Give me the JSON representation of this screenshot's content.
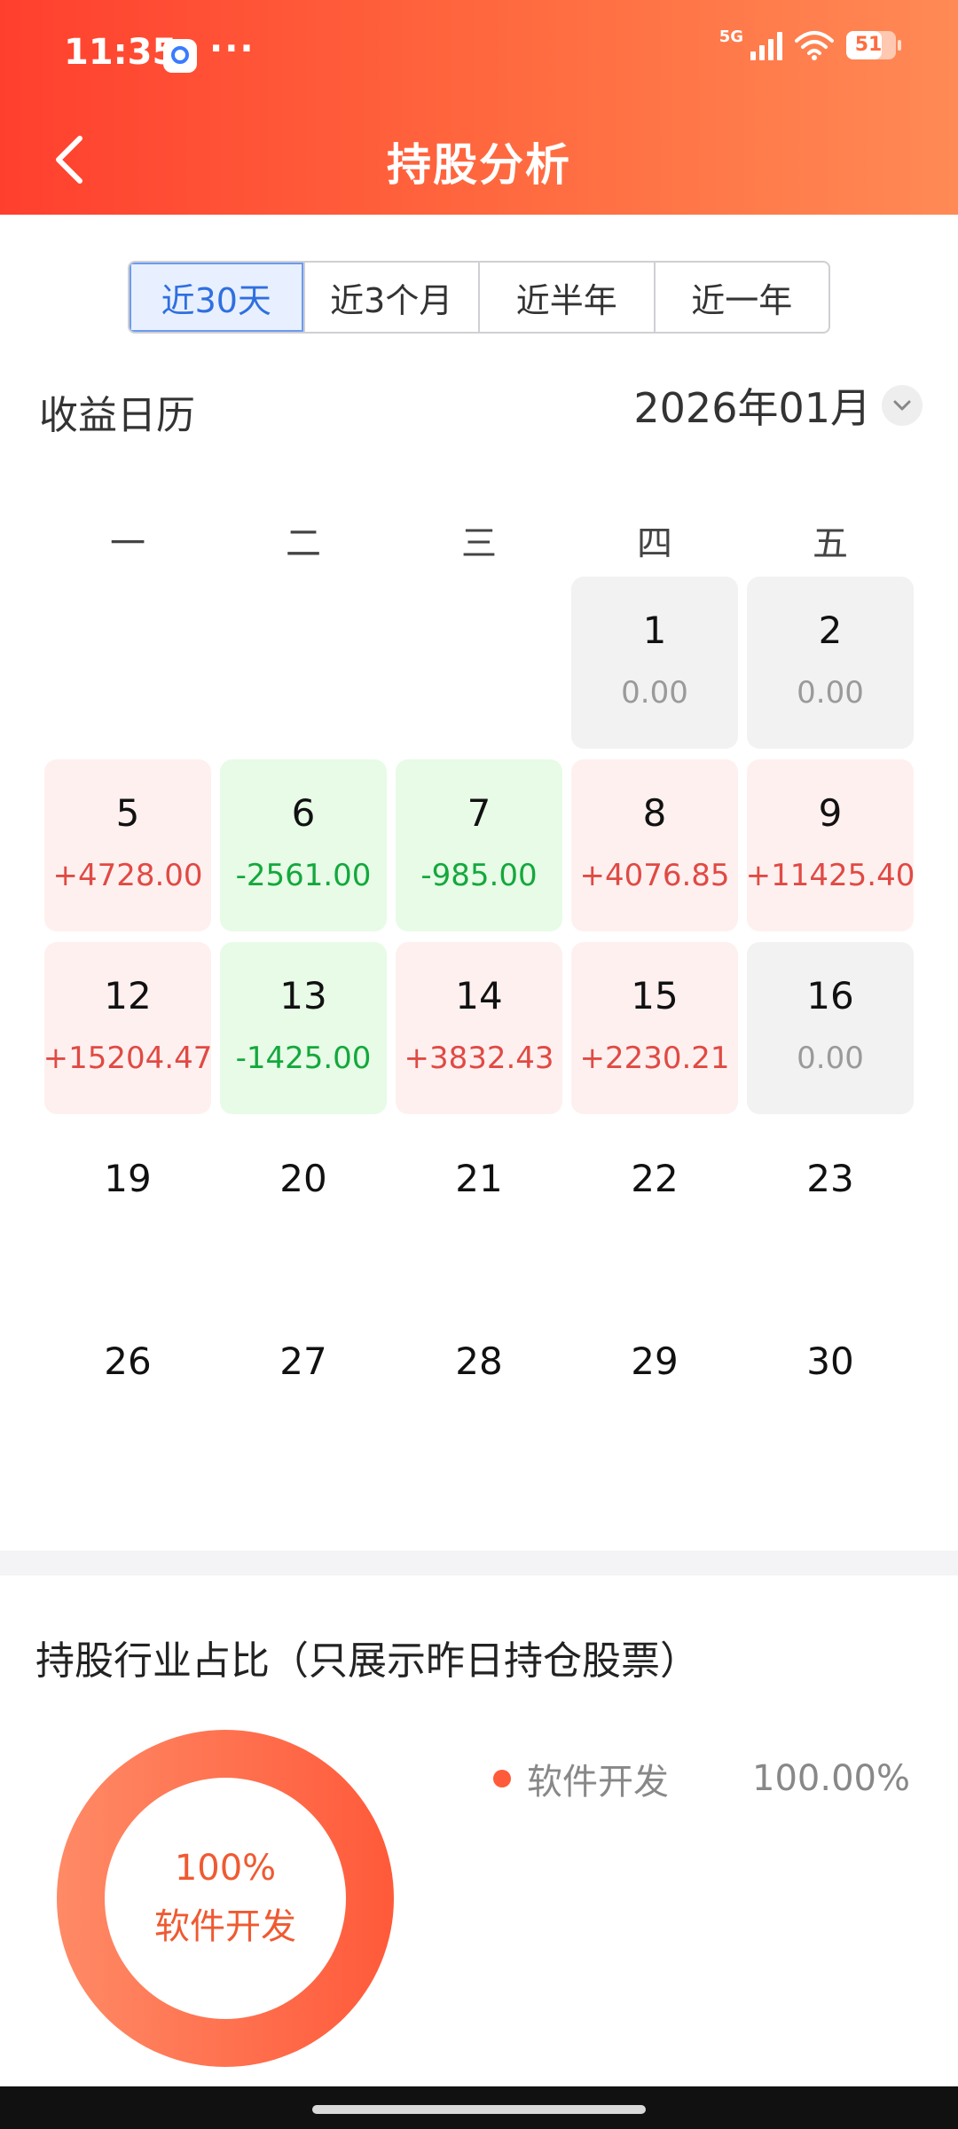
{
  "status_bar": {
    "time": "11:35",
    "dots": "···",
    "network": "5G",
    "battery": "51"
  },
  "header": {
    "title": "持股分析"
  },
  "period_tabs": [
    {
      "label": "近30天",
      "active": true
    },
    {
      "label": "近3个月",
      "active": false
    },
    {
      "label": "近半年",
      "active": false
    },
    {
      "label": "近一年",
      "active": false
    }
  ],
  "calendar": {
    "title": "收益日历",
    "month": "2026年01月",
    "weekdays": [
      "一",
      "二",
      "三",
      "四",
      "五"
    ],
    "days": [
      {
        "day": "",
        "value": "",
        "state": "empty"
      },
      {
        "day": "",
        "value": "",
        "state": "empty"
      },
      {
        "day": "",
        "value": "",
        "state": "empty"
      },
      {
        "day": "1",
        "value": "0.00",
        "state": "zero"
      },
      {
        "day": "2",
        "value": "0.00",
        "state": "zero"
      },
      {
        "day": "5",
        "value": "+4728.00",
        "state": "up"
      },
      {
        "day": "6",
        "value": "-2561.00",
        "state": "down"
      },
      {
        "day": "7",
        "value": "-985.00",
        "state": "down"
      },
      {
        "day": "8",
        "value": "+4076.85",
        "state": "up"
      },
      {
        "day": "9",
        "value": "+11425.40",
        "state": "up"
      },
      {
        "day": "12",
        "value": "+15204.47",
        "state": "up"
      },
      {
        "day": "13",
        "value": "-1425.00",
        "state": "down"
      },
      {
        "day": "14",
        "value": "+3832.43",
        "state": "up"
      },
      {
        "day": "15",
        "value": "+2230.21",
        "state": "up"
      },
      {
        "day": "16",
        "value": "0.00",
        "state": "zero"
      },
      {
        "day": "19",
        "value": "",
        "state": "future"
      },
      {
        "day": "20",
        "value": "",
        "state": "future"
      },
      {
        "day": "21",
        "value": "",
        "state": "future"
      },
      {
        "day": "22",
        "value": "",
        "state": "future"
      },
      {
        "day": "23",
        "value": "",
        "state": "future"
      },
      {
        "day": "26",
        "value": "",
        "state": "future"
      },
      {
        "day": "27",
        "value": "",
        "state": "future"
      },
      {
        "day": "28",
        "value": "",
        "state": "future"
      },
      {
        "day": "29",
        "value": "",
        "state": "future"
      },
      {
        "day": "30",
        "value": "",
        "state": "future"
      }
    ]
  },
  "industry": {
    "title": "持股行业占比（只展示昨日持仓股票）",
    "donut_center_pct": "100%",
    "donut_center_name": "软件开发",
    "legend": [
      {
        "name": "软件开发",
        "pct": "100.00%",
        "color": "#ff5a3a"
      }
    ]
  },
  "colors": {
    "up": "#e04a43",
    "down": "#14a83c",
    "zero": "#9a9a9a",
    "accent": "#2f6fe0",
    "header": "#ff5a3a"
  }
}
